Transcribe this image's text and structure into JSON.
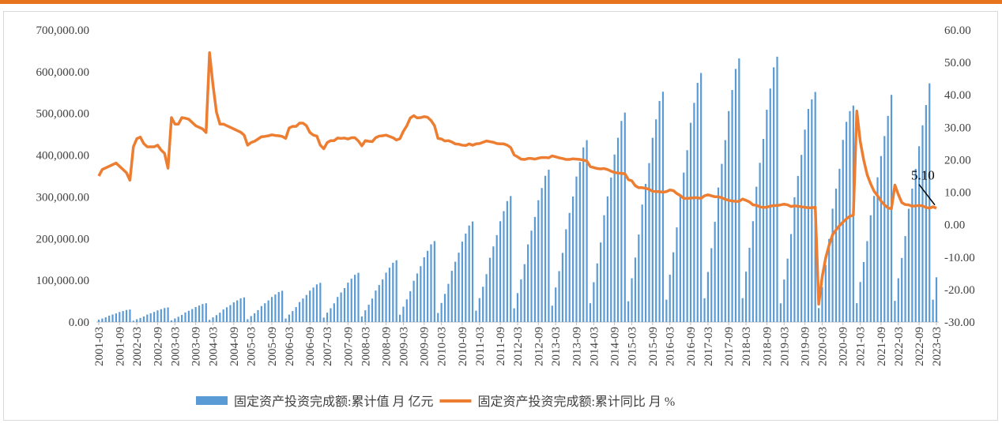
{
  "chart_data": {
    "type": "combo",
    "categories": [
      "2001-03",
      null,
      null,
      null,
      null,
      null,
      "2001-09",
      null,
      null,
      null,
      null,
      "2002-03",
      null,
      null,
      null,
      null,
      null,
      "2002-09",
      null,
      null,
      null,
      null,
      "2003-03",
      null,
      null,
      null,
      null,
      null,
      "2003-09",
      null,
      null,
      null,
      null,
      "2004-03",
      null,
      null,
      null,
      null,
      null,
      "2004-09",
      null,
      null,
      null,
      null,
      "2005-03",
      null,
      null,
      null,
      null,
      null,
      "2005-09",
      null,
      null,
      null,
      null,
      "2006-03",
      null,
      null,
      null,
      null,
      null,
      "2006-09",
      null,
      null,
      null,
      null,
      "2007-03",
      null,
      null,
      null,
      null,
      null,
      "2007-09",
      null,
      null,
      null,
      null,
      "2008-03",
      null,
      null,
      null,
      null,
      null,
      "2008-09",
      null,
      null,
      null,
      null,
      "2009-03",
      null,
      null,
      null,
      null,
      null,
      "2009-09",
      null,
      null,
      null,
      null,
      "2010-03",
      null,
      null,
      null,
      null,
      null,
      "2010-09",
      null,
      null,
      null,
      null,
      "2011-03",
      null,
      null,
      null,
      null,
      null,
      "2011-09",
      null,
      null,
      null,
      null,
      "2012-03",
      null,
      null,
      null,
      null,
      null,
      "2012-09",
      null,
      null,
      null,
      null,
      "2013-03",
      null,
      null,
      null,
      null,
      null,
      "2013-09",
      null,
      null,
      null,
      null,
      "2014-03",
      null,
      null,
      null,
      null,
      null,
      "2014-09",
      null,
      null,
      null,
      null,
      "2015-03",
      null,
      null,
      null,
      null,
      null,
      "2015-09",
      null,
      null,
      null,
      null,
      "2016-03",
      null,
      null,
      null,
      null,
      null,
      "2016-09",
      null,
      null,
      null,
      null,
      "2017-03",
      null,
      null,
      null,
      null,
      null,
      "2017-09",
      null,
      null,
      null,
      null,
      "2018-03",
      null,
      null,
      null,
      null,
      null,
      "2018-09",
      null,
      null,
      null,
      null,
      "2019-03",
      null,
      null,
      null,
      null,
      null,
      "2019-09",
      null,
      null,
      null,
      null,
      "2020-03",
      null,
      null,
      null,
      null,
      null,
      "2020-09",
      null,
      null,
      null,
      null,
      "2021-03",
      null,
      null,
      null,
      null,
      null,
      "2021-09",
      null,
      null,
      null,
      null,
      "2022-03",
      null,
      null,
      null,
      null,
      null,
      "2022-09",
      null,
      null,
      null,
      null,
      "2023-03"
    ],
    "series": [
      {
        "name": "固定资产投资完成额:累计值 月 亿元",
        "type": "bar",
        "color": "#5b9bd5",
        "values": [
          5700,
          8400,
          11400,
          15300,
          18000,
          20700,
          24000,
          26400,
          28800,
          30000,
          3150,
          6650,
          9800,
          13300,
          17850,
          21000,
          24150,
          28000,
          30800,
          33600,
          35000,
          4050,
          8550,
          12600,
          17100,
          22950,
          27000,
          31050,
          36000,
          39600,
          43200,
          45000,
          5310,
          11210,
          16520,
          22420,
          30090,
          35400,
          40710,
          47200,
          51920,
          56640,
          59000,
          6750,
          14250,
          21000,
          28500,
          38250,
          45000,
          51750,
          60000,
          66000,
          72000,
          75000,
          8460,
          17860,
          26320,
          35720,
          47940,
          56400,
          64860,
          75200,
          82720,
          90240,
          94000,
          10620,
          22420,
          33040,
          44840,
          60180,
          70800,
          81420,
          94400,
          103840,
          113280,
          118000,
          13320,
          28120,
          41440,
          56240,
          75480,
          88800,
          102120,
          118400,
          130240,
          142080,
          148000,
          17460,
          36860,
          54320,
          73720,
          98940,
          116400,
          133860,
          155200,
          170720,
          186240,
          194000,
          21690,
          45790,
          67480,
          91580,
          122910,
          144600,
          166290,
          192800,
          212080,
          231360,
          241000,
          27180,
          57380,
          84560,
          114760,
          154020,
          181200,
          208380,
          241600,
          265760,
          289920,
          302000,
          32850,
          69350,
          102200,
          138700,
          186150,
          219000,
          251850,
          292000,
          321200,
          350400,
          365000,
          39240,
          82840,
          122080,
          165680,
          222360,
          261600,
          300840,
          348800,
          383680,
          418560,
          436000,
          45180,
          95380,
          140560,
          190760,
          256020,
          301200,
          346380,
          401600,
          441760,
          481920,
          502000,
          49680,
          104880,
          154560,
          209760,
          281520,
          331200,
          380880,
          441600,
          485760,
          529920,
          552000,
          53730,
          113430,
          167160,
          226860,
          304470,
          358200,
          411930,
          477600,
          525360,
          573120,
          597000,
          56880,
          120080,
          176960,
          240160,
          322320,
          379200,
          436080,
          505600,
          556160,
          606720,
          632000,
          57240,
          120840,
          178080,
          241680,
          324360,
          381600,
          438840,
          508800,
          559680,
          610560,
          636000,
          44850,
          101870,
          152060,
          210830,
          299100,
          350150,
          400680,
          461200,
          510820,
          533720,
          551480,
          33320,
          84150,
          136820,
          199190,
          271790,
          319810,
          367310,
          436530,
          479880,
          505660,
          518910,
          45240,
          95990,
          143800,
          193920,
          255900,
          302300,
          346910,
          397830,
          445820,
          494080,
          544550,
          50760,
          104870,
          153540,
          205960,
          271430,
          319810,
          367110,
          421410,
          471460,
          520040,
          572140,
          53580,
          107280
        ]
      },
      {
        "name": "固定资产投资完成额:累计同比 月 %",
        "type": "line",
        "axis": "y2",
        "color": "#ed7d31",
        "values": [
          15.0,
          17.0,
          17.5,
          18.0,
          18.5,
          19.0,
          18.0,
          17.0,
          16.0,
          13.7,
          24.0,
          26.5,
          27.0,
          25.0,
          24.0,
          24.0,
          24.0,
          24.5,
          23.0,
          22.0,
          17.4,
          33.0,
          31.0,
          31.0,
          33.0,
          32.8,
          32.5,
          31.5,
          30.5,
          30.0,
          29.5,
          28.4,
          53.0,
          43.0,
          34.7,
          31.0,
          31.0,
          30.5,
          30.0,
          29.5,
          29.0,
          28.5,
          27.6,
          24.5,
          25.3,
          25.7,
          26.4,
          27.1,
          27.2,
          27.4,
          27.7,
          27.5,
          27.4,
          27.2,
          26.6,
          29.8,
          30.3,
          30.3,
          31.3,
          31.3,
          30.5,
          28.4,
          27.6,
          27.3,
          24.5,
          23.4,
          25.3,
          25.9,
          25.9,
          26.7,
          26.6,
          26.7,
          26.4,
          26.8,
          26.8,
          25.8,
          24.3,
          25.9,
          25.7,
          25.6,
          26.8,
          27.3,
          27.4,
          27.6,
          27.2,
          26.8,
          26.1,
          26.5,
          28.8,
          30.5,
          32.9,
          33.6,
          32.9,
          33.0,
          33.3,
          33.1,
          32.1,
          30.5,
          26.6,
          26.4,
          25.8,
          25.9,
          25.5,
          24.9,
          24.8,
          24.5,
          24.4,
          24.9,
          24.5,
          24.9,
          25.0,
          25.4,
          25.8,
          25.6,
          25.4,
          25.0,
          24.9,
          24.9,
          24.5,
          23.8,
          21.5,
          20.9,
          20.2,
          20.1,
          20.4,
          20.4,
          20.2,
          20.5,
          20.7,
          20.7,
          20.6,
          21.2,
          20.9,
          20.6,
          20.4,
          20.1,
          20.1,
          20.3,
          20.2,
          20.1,
          19.9,
          19.6,
          17.9,
          17.6,
          17.3,
          17.2,
          17.3,
          17.0,
          16.5,
          16.1,
          15.9,
          15.8,
          15.7,
          13.9,
          13.5,
          12.0,
          11.4,
          11.4,
          11.2,
          10.9,
          10.3,
          10.2,
          10.2,
          10.0,
          10.2,
          10.7,
          10.5,
          9.6,
          9.0,
          8.1,
          8.1,
          8.2,
          8.3,
          8.3,
          8.1,
          8.9,
          9.2,
          8.9,
          8.6,
          8.6,
          8.3,
          7.8,
          7.5,
          7.3,
          7.2,
          7.2,
          7.9,
          7.5,
          7.0,
          6.1,
          6.0,
          5.5,
          5.3,
          5.4,
          5.7,
          5.9,
          5.9,
          6.1,
          6.3,
          6.1,
          5.6,
          5.8,
          5.7,
          5.5,
          5.4,
          5.2,
          5.2,
          5.4,
          -24.5,
          -16.1,
          -10.3,
          -6.3,
          -3.1,
          -1.6,
          -0.3,
          0.8,
          1.8,
          2.6,
          2.9,
          35.0,
          25.6,
          19.9,
          15.4,
          12.6,
          10.3,
          8.9,
          7.3,
          6.1,
          5.2,
          4.9,
          12.2,
          9.3,
          6.8,
          6.2,
          6.1,
          5.7,
          5.8,
          5.9,
          5.8,
          5.3,
          5.1,
          5.5,
          5.1
        ],
        "annotation": {
          "index": 242,
          "label": "5.10"
        }
      }
    ],
    "ylim": [
      0,
      700000
    ],
    "yticks": [
      {
        "value": 0,
        "label": "0.00"
      },
      {
        "value": 100000,
        "label": "100,000.00"
      },
      {
        "value": 200000,
        "label": "200,000.00"
      },
      {
        "value": 300000,
        "label": "300,000.00"
      },
      {
        "value": 400000,
        "label": "400,000.00"
      },
      {
        "value": 500000,
        "label": "500,000.00"
      },
      {
        "value": 600000,
        "label": "600,000.00"
      },
      {
        "value": 700000,
        "label": "700,000.00"
      }
    ],
    "y2lim": [
      -30,
      60
    ],
    "y2ticks": [
      {
        "value": -30,
        "label": "-30.00"
      },
      {
        "value": -20,
        "label": "-20.00"
      },
      {
        "value": -10,
        "label": "-10.00"
      },
      {
        "value": 0,
        "label": "0.00"
      },
      {
        "value": 10,
        "label": "10.00"
      },
      {
        "value": 20,
        "label": "20.00"
      },
      {
        "value": 30,
        "label": "30.00"
      },
      {
        "value": 40,
        "label": "40.00"
      },
      {
        "value": 50,
        "label": "50.00"
      },
      {
        "value": 60,
        "label": "60.00"
      }
    ],
    "legend": "bottom"
  }
}
